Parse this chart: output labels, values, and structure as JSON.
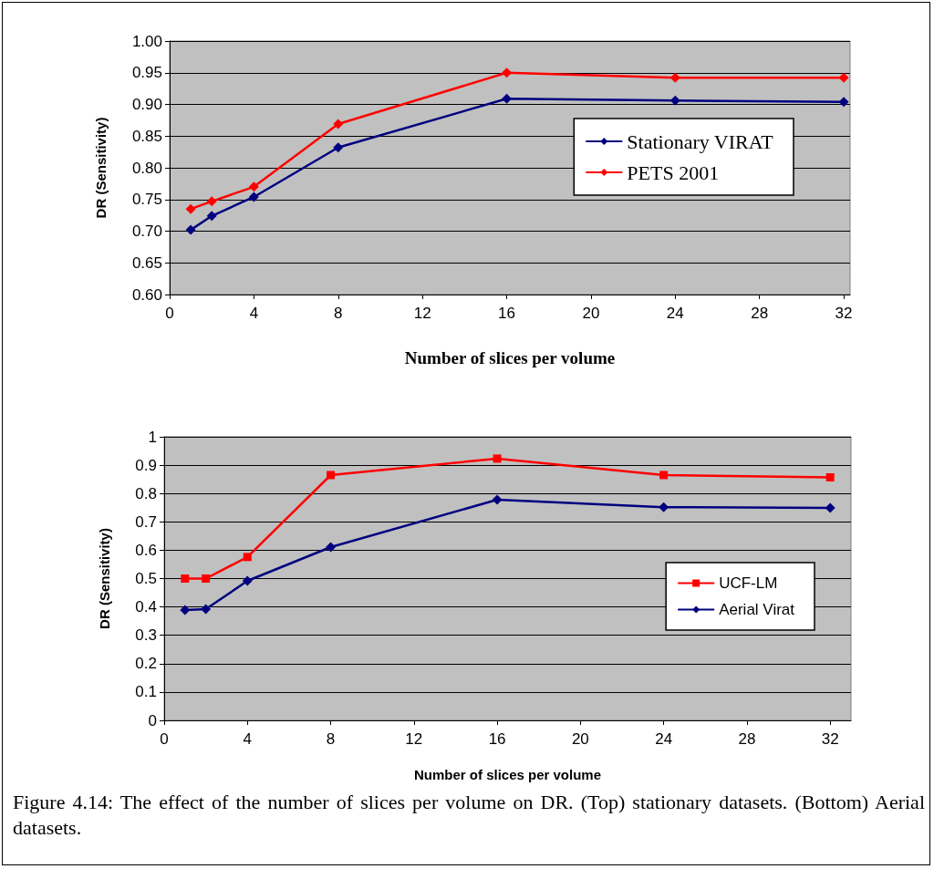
{
  "chart_data": [
    {
      "type": "line",
      "xlabel": "Number of slices per volume",
      "ylabel": "DR (Sensitivity)",
      "x": [
        1,
        2,
        4,
        8,
        16,
        24,
        32
      ],
      "series": [
        {
          "name": "Stationary VIRAT",
          "color": "#000080",
          "marker": "diamond",
          "values": [
            0.702,
            0.724,
            0.754,
            0.832,
            0.909,
            0.906,
            0.904
          ]
        },
        {
          "name": "PETS 2001",
          "color": "#ff0000",
          "marker": "diamond",
          "values": [
            0.735,
            0.747,
            0.77,
            0.869,
            0.95,
            0.942,
            0.942
          ]
        }
      ],
      "xlim": [
        0,
        32.3
      ],
      "xticks": [
        0,
        4,
        8,
        12,
        16,
        20,
        24,
        28,
        32
      ],
      "ylim": [
        0.6,
        1.0
      ],
      "yticks": [
        {
          "value": 0.6,
          "label": "0.60"
        },
        {
          "value": 0.65,
          "label": "0.65"
        },
        {
          "value": 0.7,
          "label": "0.70"
        },
        {
          "value": 0.75,
          "label": "0.75"
        },
        {
          "value": 0.8,
          "label": "0.80"
        },
        {
          "value": 0.85,
          "label": "0.85"
        },
        {
          "value": 0.9,
          "label": "0.90"
        },
        {
          "value": 0.95,
          "label": "0.95"
        },
        {
          "value": 1.0,
          "label": "1.00"
        }
      ],
      "grid": "y",
      "legend": "right"
    },
    {
      "type": "line",
      "xlabel": "Number of slices per volume",
      "ylabel": "DR (Sensitivity)",
      "x": [
        1,
        2,
        4,
        8,
        16,
        24,
        32
      ],
      "series": [
        {
          "name": "UCF-LM",
          "color": "#ff0000",
          "marker": "square",
          "values": [
            0.5,
            0.5,
            0.576,
            0.865,
            0.923,
            0.865,
            0.857
          ]
        },
        {
          "name": "Aerial Virat",
          "color": "#000080",
          "marker": "diamond",
          "values": [
            0.389,
            0.392,
            0.492,
            0.611,
            0.778,
            0.752,
            0.749
          ]
        }
      ],
      "xlim": [
        0,
        33
      ],
      "xticks": [
        0,
        4,
        8,
        12,
        16,
        20,
        24,
        28,
        32
      ],
      "ylim": [
        0,
        1
      ],
      "yticks": [
        0,
        0.1,
        0.2,
        0.3,
        0.4,
        0.5,
        0.6,
        0.7,
        0.8,
        0.9,
        1
      ],
      "grid": "y",
      "legend": "right",
      "annotations": [
        "Figure 4.14: The effect of the number of slices per volume on DR. (Top) stationary datasets. (Bottom) Aerial datasets."
      ]
    }
  ]
}
